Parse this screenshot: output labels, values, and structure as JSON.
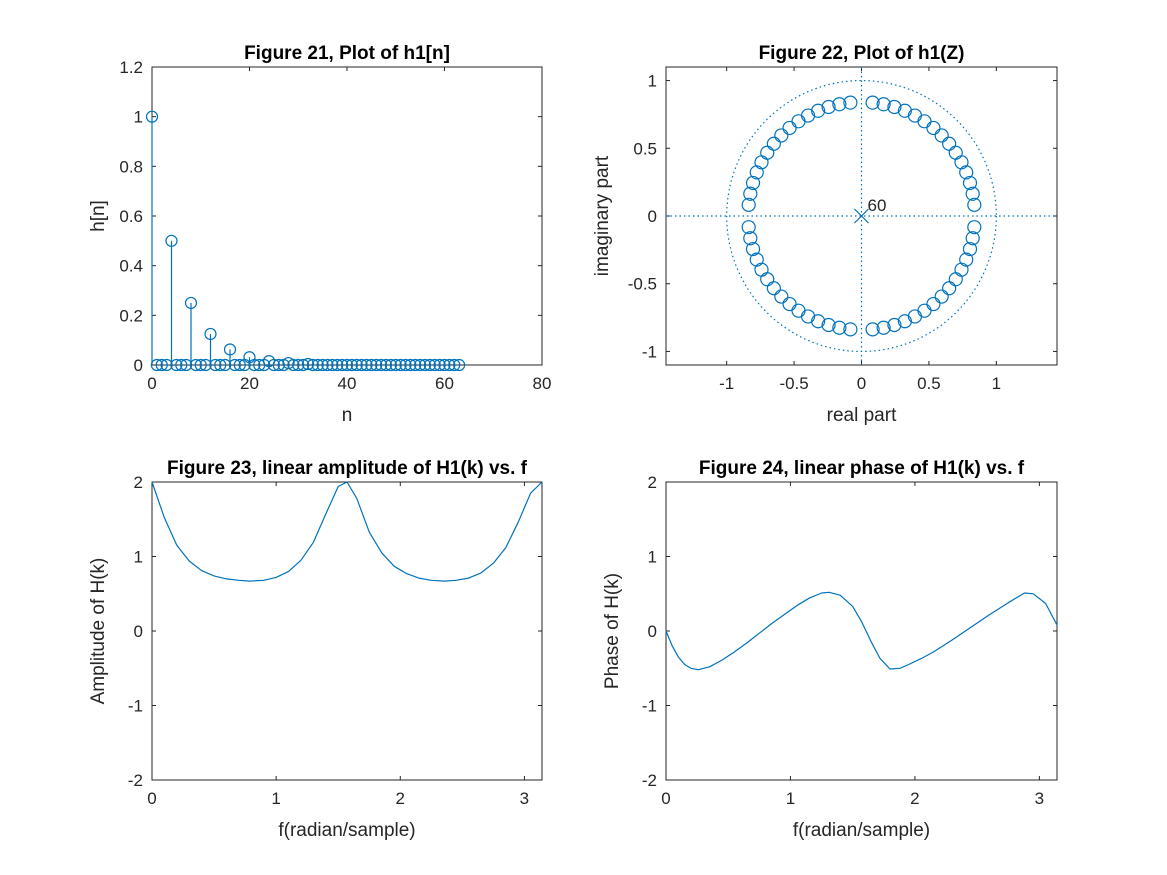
{
  "colors": {
    "series": "#0072BD",
    "axes": "#262626"
  },
  "chart_data": [
    {
      "type": "stem",
      "title": "Figure 21, Plot of h1[n]",
      "xlabel": "n",
      "ylabel": "h[n]",
      "xlim": [
        0,
        80
      ],
      "ylim": [
        0,
        1.2
      ],
      "xticks": [
        0,
        20,
        40,
        60,
        80
      ],
      "yticks": [
        0,
        0.2,
        0.4,
        0.6,
        0.8,
        1,
        1.2
      ],
      "xtick_labels": [
        "0",
        "20",
        "40",
        "60",
        "80"
      ],
      "ytick_labels": [
        "0",
        "0.2",
        "0.4",
        "0.6",
        "0.8",
        "1",
        "1.2"
      ],
      "n_range": [
        0,
        63
      ],
      "nonzero": [
        [
          0,
          1
        ],
        [
          4,
          0.5
        ],
        [
          8,
          0.25
        ],
        [
          12,
          0.125
        ],
        [
          16,
          0.0625
        ],
        [
          20,
          0.03125
        ],
        [
          24,
          0.015625
        ],
        [
          28,
          0.0078125
        ],
        [
          32,
          0.0039063
        ]
      ],
      "legend": "none",
      "grid": false
    },
    {
      "type": "pole-zero",
      "title": "Figure 22, Plot of h1(Z)",
      "xlabel": "real part",
      "ylabel": "imaginary part",
      "xlim": [
        -1.45,
        1.45
      ],
      "ylim": [
        -1.1,
        1.1
      ],
      "xticks": [
        -1,
        -0.5,
        0,
        0.5,
        1
      ],
      "yticks": [
        -1,
        -0.5,
        0,
        0.5,
        1
      ],
      "xtick_labels": [
        "-1",
        "-0.5",
        "0",
        "0.5",
        "1"
      ],
      "ytick_labels": [
        "-1",
        "-0.5",
        "0",
        "0.5",
        "1"
      ],
      "zero_radius": 0.8409,
      "zero_angles_deg": [
        5.625,
        16.875,
        28.125,
        39.375,
        50.625,
        61.875,
        73.125,
        84.375,
        95.625,
        106.875,
        118.125,
        129.375,
        140.625,
        151.875,
        163.125,
        174.375,
        185.625,
        196.875,
        208.125,
        219.375,
        230.625,
        241.875,
        253.125,
        264.375,
        275.625,
        286.875,
        298.125,
        309.375,
        320.625,
        331.875,
        343.125,
        354.375,
        11.25,
        22.5,
        33.75,
        45,
        56.25,
        67.5,
        78.75,
        101.25,
        112.5,
        123.75,
        135,
        146.25,
        157.5,
        168.75,
        191.25,
        202.5,
        213.75,
        225,
        236.25,
        247.5,
        258.75,
        281.25,
        292.5,
        303.75,
        315,
        326.25,
        337.5,
        348.75
      ],
      "pole": {
        "re": 0,
        "im": 0,
        "label": "60"
      },
      "unit_circle": true,
      "legend": "none",
      "grid": false
    },
    {
      "type": "line",
      "title": "Figure 23, linear amplitude of H1(k) vs. f",
      "xlabel": "f(radian/sample)",
      "ylabel": "Amplitude of H(k)",
      "xlim": [
        0,
        3.1416
      ],
      "ylim": [
        -2,
        2
      ],
      "xticks": [
        0,
        1,
        2,
        3
      ],
      "yticks": [
        -2,
        -1,
        0,
        1,
        2
      ],
      "xtick_labels": [
        "0",
        "1",
        "2",
        "3"
      ],
      "ytick_labels": [
        "-2",
        "-1",
        "0",
        "1",
        "2"
      ],
      "x": [
        0,
        0.1,
        0.2,
        0.3,
        0.4,
        0.5,
        0.6,
        0.7,
        0.785,
        0.9,
        1.0,
        1.1,
        1.2,
        1.3,
        1.4,
        1.5,
        1.571,
        1.65,
        1.75,
        1.85,
        1.95,
        2.05,
        2.15,
        2.25,
        2.356,
        2.45,
        2.55,
        2.65,
        2.75,
        2.85,
        2.95,
        3.05,
        3.1416
      ],
      "y": [
        2.0,
        1.52,
        1.15,
        0.94,
        0.81,
        0.74,
        0.7,
        0.68,
        0.67,
        0.68,
        0.72,
        0.8,
        0.95,
        1.19,
        1.57,
        1.94,
        2.0,
        1.78,
        1.33,
        1.05,
        0.87,
        0.77,
        0.71,
        0.68,
        0.67,
        0.68,
        0.71,
        0.78,
        0.91,
        1.12,
        1.46,
        1.85,
        2.0
      ],
      "legend": "none",
      "grid": false
    },
    {
      "type": "line",
      "title": "Figure 24, linear phase of H1(k) vs. f",
      "xlabel": "f(radian/sample)",
      "ylabel": "Phase of H(k)",
      "xlim": [
        0,
        3.1416
      ],
      "ylim": [
        -2,
        2
      ],
      "xticks": [
        0,
        1,
        2,
        3
      ],
      "yticks": [
        -2,
        -1,
        0,
        1,
        2
      ],
      "xtick_labels": [
        "0",
        "1",
        "2",
        "3"
      ],
      "ytick_labels": [
        "-2",
        "-1",
        "0",
        "1",
        "2"
      ],
      "x": [
        0,
        0.05,
        0.1,
        0.15,
        0.2,
        0.26,
        0.35,
        0.45,
        0.55,
        0.65,
        0.75,
        0.85,
        0.95,
        1.05,
        1.15,
        1.25,
        1.31,
        1.4,
        1.5,
        1.57,
        1.65,
        1.72,
        1.8,
        1.88,
        1.95,
        2.05,
        2.15,
        2.3,
        2.45,
        2.6,
        2.75,
        2.88,
        2.95,
        3.05,
        3.1416
      ],
      "y": [
        0,
        -0.2,
        -0.35,
        -0.45,
        -0.5,
        -0.52,
        -0.48,
        -0.39,
        -0.28,
        -0.16,
        -0.03,
        0.1,
        0.22,
        0.34,
        0.44,
        0.51,
        0.52,
        0.48,
        0.33,
        0.13,
        -0.15,
        -0.37,
        -0.51,
        -0.5,
        -0.45,
        -0.37,
        -0.28,
        -0.12,
        0.05,
        0.22,
        0.38,
        0.51,
        0.5,
        0.37,
        0.08
      ],
      "legend": "none",
      "grid": false
    }
  ]
}
